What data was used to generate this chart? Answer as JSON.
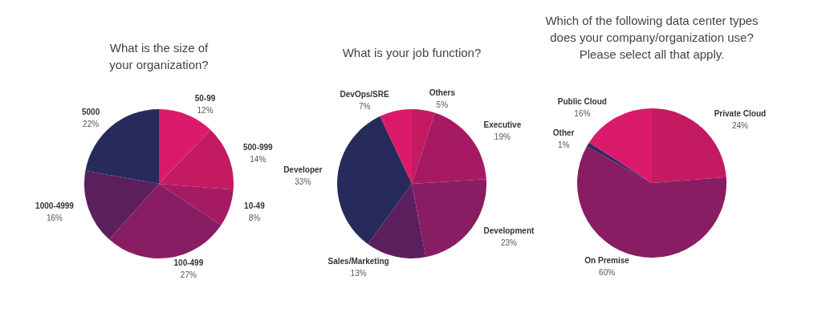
{
  "chart_data": [
    {
      "type": "pie",
      "title": "What is the size of\nyour organization?",
      "categories": [
        "50-99",
        "500-999",
        "10-49",
        "100-499",
        "1000-4999",
        "5000"
      ],
      "values": [
        12,
        14,
        8,
        27,
        16,
        22
      ],
      "value_labels": [
        "12%",
        "14%",
        "8%",
        "27%",
        "16%",
        "22%"
      ],
      "colors": [
        "#dc1a6b",
        "#c41a62",
        "#a51a63",
        "#891d64",
        "#5c1f5e",
        "#262b5c"
      ]
    },
    {
      "type": "pie",
      "title": "What is your job function?",
      "categories": [
        "Others",
        "Executive",
        "Development",
        "Sales/Marketing",
        "Developer",
        "DevOps/SRE"
      ],
      "values": [
        5,
        19,
        23,
        13,
        33,
        7
      ],
      "value_labels": [
        "5%",
        "19%",
        "23%",
        "13%",
        "33%",
        "7%"
      ],
      "colors": [
        "#c41a62",
        "#a51a63",
        "#891d64",
        "#5c1f5e",
        "#262b5c",
        "#dc1a6b"
      ]
    },
    {
      "type": "pie",
      "title": "Which of the following data center types\ndoes your company/organization use?\nPlease select all that apply.",
      "categories": [
        "Private Cloud",
        "On Premise",
        "Other",
        "Public Cloud"
      ],
      "values": [
        24,
        60,
        1,
        16
      ],
      "value_labels": [
        "24%",
        "60%",
        "1%",
        "16%"
      ],
      "colors": [
        "#c41a62",
        "#891d64",
        "#3a2660",
        "#dc1a6b"
      ]
    }
  ]
}
